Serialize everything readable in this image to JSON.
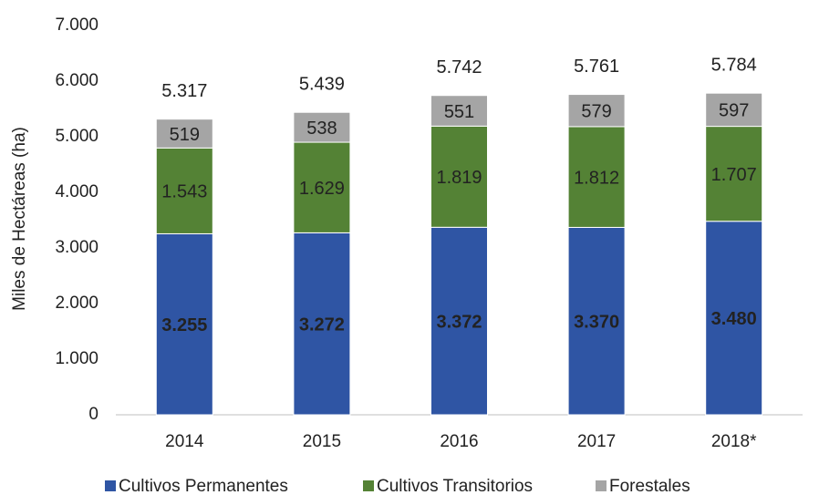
{
  "chart_data": {
    "type": "stacked_bar",
    "y_axis_label": "Miles de Hectáreas (ha)",
    "categories": [
      "2014",
      "2015",
      "2016",
      "2017",
      "2018*"
    ],
    "series": [
      {
        "name": "Cultivos Permanentes",
        "color": "#2f55a4",
        "values": [
          3255,
          3272,
          3372,
          3370,
          3480
        ],
        "value_labels": [
          "3.255",
          "3.272",
          "3.372",
          "3.370",
          "3.480"
        ]
      },
      {
        "name": "Cultivos Transitorios",
        "color": "#548235",
        "values": [
          1543,
          1629,
          1819,
          1812,
          1707
        ],
        "value_labels": [
          "1.543",
          "1.629",
          "1.819",
          "1.812",
          "1.707"
        ]
      },
      {
        "name": "Forestales",
        "color": "#a5a5a5",
        "values": [
          519,
          538,
          551,
          579,
          597
        ]
      }
    ],
    "totals": {
      "values": [
        5317,
        5439,
        5742,
        5761,
        5784
      ],
      "value_labels": [
        "5.317",
        "5.439",
        "5.742",
        "5.761",
        "5.784"
      ]
    },
    "ylim": [
      0,
      7000
    ],
    "yticks": [
      0,
      {
        "value": 1000,
        "label": "1.000"
      },
      {
        "value": 2000,
        "label": "2.000"
      },
      {
        "value": 3000,
        "label": "3.000"
      },
      {
        "value": 4000,
        "label": "4.000"
      },
      {
        "value": 5000,
        "label": "5.000"
      },
      {
        "value": 6000,
        "label": "6.000"
      },
      {
        "value": 7000,
        "label": "7.000"
      }
    ],
    "grid": false,
    "legend": "bottom"
  }
}
